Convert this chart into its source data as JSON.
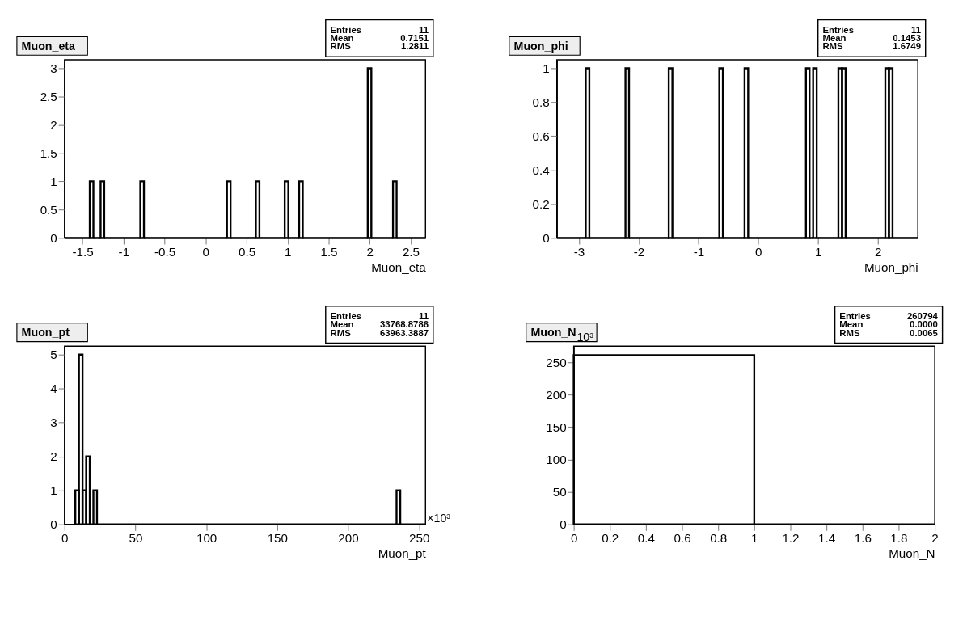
{
  "chart_data": [
    {
      "type": "histogram",
      "title": "Muon_eta",
      "xlabel": "Muon_eta",
      "bins": [
        -1.72,
        -1.412,
        -1.368,
        -1.28,
        -1.236,
        -0.796,
        -0.752,
        0.26,
        0.304,
        0.612,
        0.656,
        0.964,
        1.008,
        1.14,
        1.184,
        1.976,
        2.02,
        2.284,
        2.328,
        2.68
      ],
      "values": [
        0,
        1,
        0,
        1,
        0,
        1,
        0,
        1,
        0,
        1,
        0,
        1,
        0,
        1,
        0,
        3,
        0,
        1,
        0
      ],
      "xlim": [
        -1.72,
        2.68
      ],
      "xticks": [
        -1.5,
        -1,
        -0.5,
        0,
        0.5,
        1,
        1.5,
        2,
        2.5
      ],
      "ylim": [
        0,
        3.15
      ],
      "yticks": [
        0,
        0.5,
        1,
        1.5,
        2,
        2.5,
        3
      ],
      "annotations": [
        "Entries",
        "11",
        "Mean",
        "0.7151",
        "RMS",
        "1.2811"
      ]
    },
    {
      "type": "histogram",
      "title": "Muon_phi",
      "xlabel": "Muon_phi",
      "bins": [
        -3.37,
        -2.887,
        -2.826,
        -2.222,
        -2.162,
        -1.498,
        -1.437,
        -0.652,
        -0.592,
        -0.229,
        -0.169,
        0.798,
        0.858,
        0.918,
        0.978,
        1.341,
        1.402,
        1.462,
        2.126,
        2.186,
        2.247,
        2.67
      ],
      "values": [
        0,
        1,
        0,
        1,
        0,
        1,
        0,
        1,
        0,
        1,
        0,
        1,
        0,
        1,
        0,
        1,
        1,
        0,
        1,
        1,
        0
      ],
      "xlim": [
        -3.37,
        2.67
      ],
      "xticks": [
        -3,
        -2,
        -1,
        0,
        1,
        2
      ],
      "ylim": [
        0,
        1.05
      ],
      "yticks": [
        0,
        0.2,
        0.4,
        0.6,
        0.8,
        1
      ],
      "annotations": [
        "Entries",
        "11",
        "Mean",
        "0.1453",
        "RMS",
        "1.6749"
      ]
    },
    {
      "type": "histogram",
      "title": "Muon_pt",
      "xlabel": "Muon_pt",
      "bins": [
        7.64,
        10.18,
        12.73,
        15.28,
        17.82,
        20.37,
        22.91,
        234.2,
        236.8,
        254.6
      ],
      "values": [
        1,
        5,
        1,
        2,
        0,
        1,
        0,
        1,
        0
      ],
      "xlim": [
        0,
        254.6
      ],
      "xticks": [
        0,
        50,
        100,
        150,
        200,
        250
      ],
      "ylim": [
        0,
        5.25
      ],
      "yticks": [
        0,
        1,
        2,
        3,
        4,
        5
      ],
      "annotations": [
        "Entries",
        "11",
        "Mean",
        "33768.8786",
        "RMS",
        "63963.3887",
        "×10³"
      ]
    },
    {
      "type": "histogram",
      "title": "Muon_N",
      "xlabel": "Muon_N",
      "bins": [
        0,
        1,
        2
      ],
      "values": [
        261,
        0
      ],
      "xlim": [
        0,
        2
      ],
      "xticks": [
        0,
        0.2,
        0.4,
        0.6,
        0.8,
        1,
        1.2,
        1.4,
        1.6,
        1.8,
        2
      ],
      "ylim": [
        0,
        275
      ],
      "yticks": [
        0,
        50,
        100,
        150,
        200,
        250
      ],
      "annotations": [
        "Entries",
        "260794",
        "Mean",
        "0.0000",
        "RMS",
        "0.0065",
        "10³"
      ]
    }
  ]
}
